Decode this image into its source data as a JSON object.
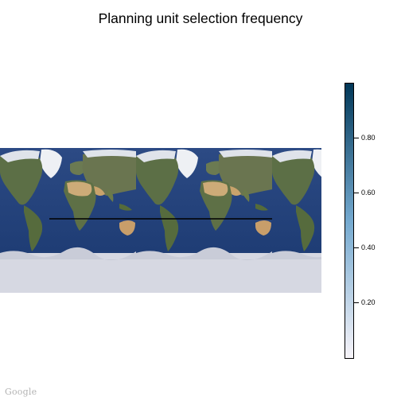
{
  "title": "Planning unit selection frequency",
  "legend": {
    "ticks": [
      {
        "label": "0.80",
        "value": 0.8
      },
      {
        "label": "0.60",
        "value": 0.6
      },
      {
        "label": "0.40",
        "value": 0.4
      },
      {
        "label": "0.20",
        "value": 0.2
      }
    ],
    "range": [
      0.0,
      1.0
    ],
    "colors": {
      "low": "#f7f4f9",
      "mid": "#74a9cf",
      "high": "#023858"
    }
  },
  "map": {
    "ocean_color": "#23427a",
    "land_color": "#5e7048",
    "desert_color": "#c9a774",
    "ice_color": "#d8d8e0"
  },
  "attribution": "Google"
}
